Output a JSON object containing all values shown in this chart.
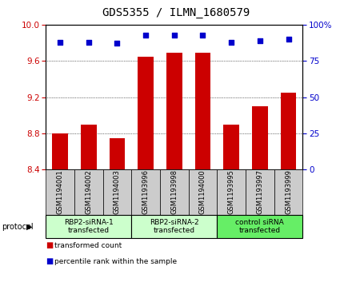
{
  "title": "GDS5355 / ILMN_1680579",
  "samples": [
    "GSM1194001",
    "GSM1194002",
    "GSM1194003",
    "GSM1193996",
    "GSM1193998",
    "GSM1194000",
    "GSM1193995",
    "GSM1193997",
    "GSM1193999"
  ],
  "bar_values": [
    8.8,
    8.9,
    8.75,
    9.65,
    9.69,
    9.69,
    8.9,
    9.1,
    9.25
  ],
  "dot_values": [
    88,
    88,
    87,
    93,
    93,
    93,
    88,
    89,
    90
  ],
  "ylim_left": [
    8.4,
    10.0
  ],
  "ylim_right": [
    0,
    100
  ],
  "yticks_left": [
    8.4,
    8.8,
    9.2,
    9.6,
    10.0
  ],
  "yticks_right": [
    0,
    25,
    50,
    75,
    100
  ],
  "groups": [
    {
      "label": "RBP2-siRNA-1\ntransfected",
      "start": 0,
      "end": 3,
      "color": "#ccffcc"
    },
    {
      "label": "RBP2-siRNA-2\ntransfected",
      "start": 3,
      "end": 6,
      "color": "#ccffcc"
    },
    {
      "label": "control siRNA\ntransfected",
      "start": 6,
      "end": 9,
      "color": "#66ee66"
    }
  ],
  "bar_color": "#cc0000",
  "dot_color": "#0000cc",
  "bar_width": 0.55,
  "ylabel_left_color": "#cc0000",
  "ylabel_right_color": "#0000cc",
  "title_fontsize": 10,
  "grid_color": "#000000",
  "sample_box_color": "#cccccc",
  "legend_bar_label": "transformed count",
  "legend_dot_label": "percentile rank within the sample",
  "protocol_label": "protocol"
}
